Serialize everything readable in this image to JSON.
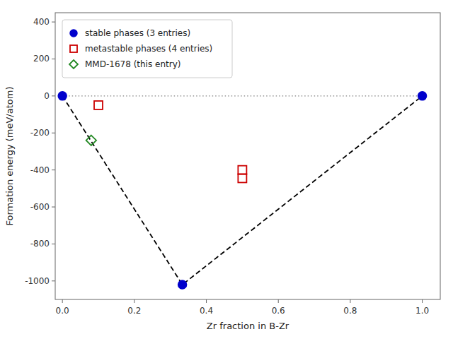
{
  "chart_data": {
    "type": "scatter",
    "xlabel": "Zr fraction in B-Zr",
    "ylabel": "Formation energy (meV/atom)",
    "xlim": [
      -0.02,
      1.05
    ],
    "ylim": [
      -1100,
      450
    ],
    "xticks": [
      {
        "value": 0.0,
        "label": "0.0"
      },
      0.2,
      0.4,
      0.6,
      0.8,
      {
        "value": 1.0,
        "label": "1.0"
      }
    ],
    "yticks": [
      400,
      200,
      0,
      -200,
      -400,
      -600,
      -800,
      -1000
    ],
    "grid": false,
    "legend": "upper left",
    "series": [
      {
        "type": "line",
        "line_style": "dotted",
        "color": "gray",
        "x": [
          0.0,
          1.0
        ],
        "values": [
          0.0,
          0.0
        ]
      },
      {
        "type": "line",
        "line_style": "dashed",
        "color": "black",
        "x": [
          0.0,
          0.3333,
          1.0
        ],
        "values": [
          0.0,
          -1020.0,
          0.0
        ]
      },
      {
        "type": "scatter",
        "name": "stable phases (3 entries)",
        "marker": "circle",
        "color": "#0000cc",
        "x": [
          0.0,
          0.3333,
          1.0
        ],
        "values": [
          0.0,
          -1020.0,
          0.0
        ]
      },
      {
        "type": "scatter",
        "name": "metastable phases (4 entries)",
        "marker": "open-square",
        "color": "#cc0000",
        "x": [
          0.1,
          0.5,
          0.5
        ],
        "values": [
          -50.0,
          -400.0,
          -445.0
        ]
      },
      {
        "type": "scatter",
        "name": "MMD-1678 (this entry)",
        "marker": "open-diamond",
        "color": "#228822",
        "x": [
          0.08
        ],
        "values": [
          -240.0
        ]
      }
    ]
  }
}
